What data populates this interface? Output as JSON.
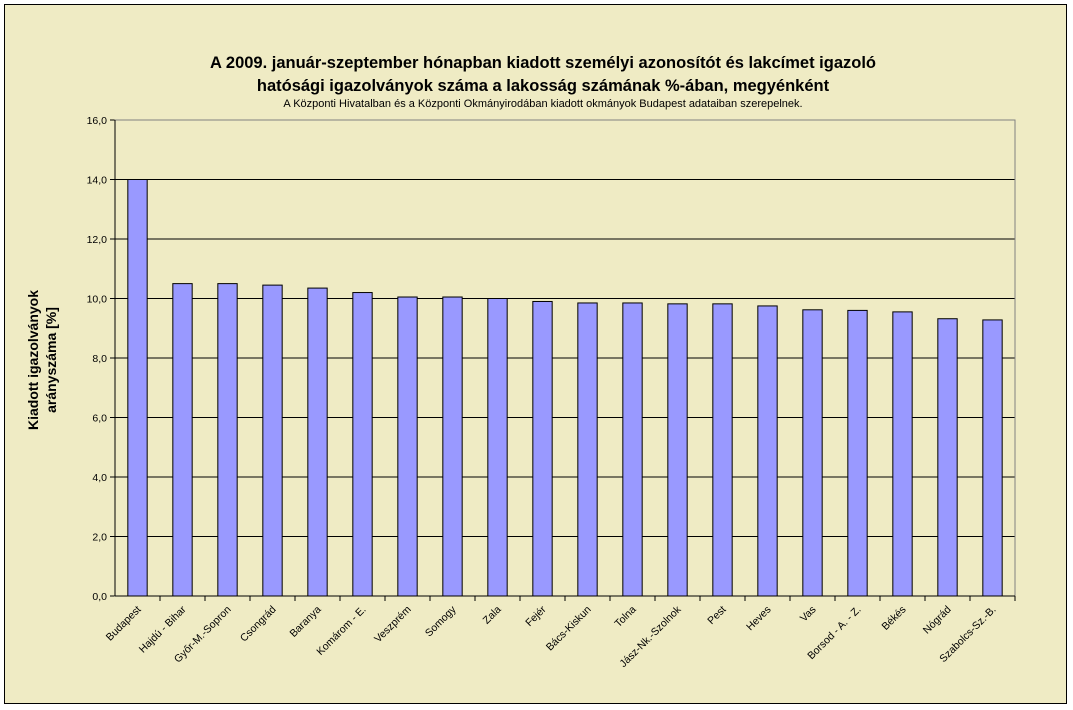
{
  "colors": {
    "background": "#efebc4",
    "bar_fill": "#9999ff",
    "bar_stroke": "#000000",
    "gridline": "#000000"
  },
  "chart_data": {
    "type": "bar",
    "title_line1": "A 2009. január-szeptember hónapban kiadott személyi azonosítót és lakcímet igazoló",
    "title_line2": "hatósági igazolványok száma a lakosság  számának %-ában, megyénként",
    "subtitle": "A Központi Hivatalban és a Központi Okmányirodában kiadott okmányok Budapest adataiban szerepelnek.",
    "xlabel": "",
    "ylabel_line1": "Kiadott igazolványok",
    "ylabel_line2": "arányszáma [%]",
    "ylim": [
      0,
      16
    ],
    "y_ticks": [
      "0,0",
      "2,0",
      "4,0",
      "6,0",
      "8,0",
      "10,0",
      "12,0",
      "14,0",
      "16,0"
    ],
    "grid": true,
    "legend": "none",
    "categories": [
      "Budapest",
      "Hajdú - Bihar",
      "Győr-M.-Sopron",
      "Csongrád",
      "Baranya",
      "Komárom - E.",
      "Veszprém",
      "Somogy",
      "Zala",
      "Fejér",
      "Bács-Kiskun",
      "Tolna",
      "Jász-Nk.-Szolnok",
      "Pest",
      "Heves",
      "Vas",
      "Borsod - A. - Z.",
      "Békés",
      "Nógrád",
      "Szabolcs-Sz.-B."
    ],
    "values": [
      14.0,
      10.5,
      10.5,
      10.45,
      10.35,
      10.2,
      10.05,
      10.05,
      10.0,
      9.9,
      9.85,
      9.85,
      9.82,
      9.82,
      9.75,
      9.62,
      9.6,
      9.55,
      9.32,
      9.28
    ]
  }
}
